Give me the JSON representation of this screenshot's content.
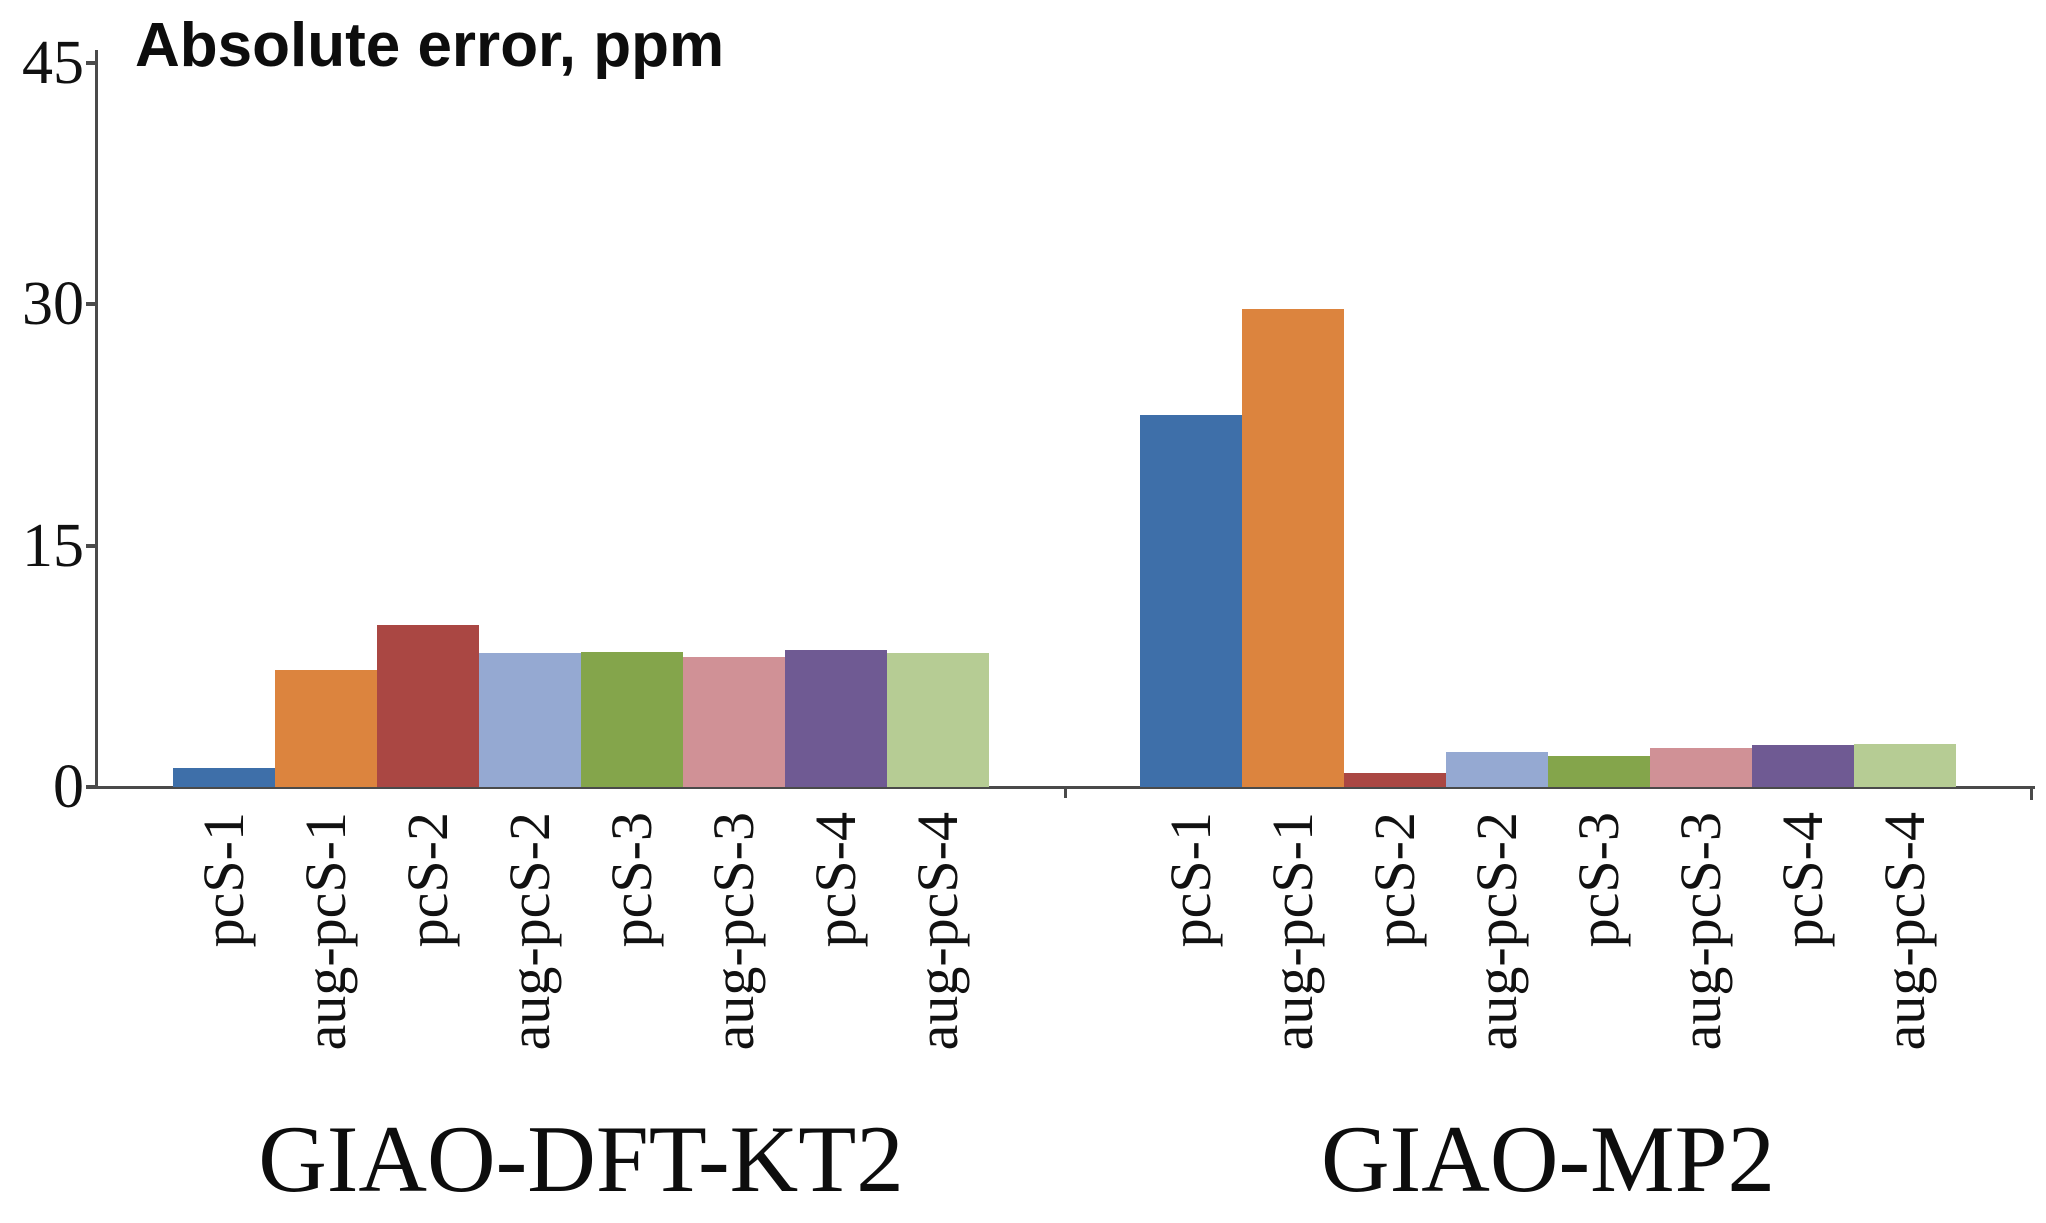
{
  "page": {
    "background": "#ffffff"
  },
  "chart_data": {
    "type": "bar",
    "title": "Absolute error, ppm",
    "categories": [
      "pcS-1",
      "aug-pcS-1",
      "pcS-2",
      "aug-pcS-2",
      "pcS-3",
      "aug-pcS-3",
      "pcS-4",
      "aug-pcS-4"
    ],
    "groups": [
      {
        "label": "GIAO-DFT-KT2",
        "values": [
          1.2,
          7.3,
          10.1,
          8.3,
          8.4,
          8.1,
          8.5,
          8.3
        ]
      },
      {
        "label": "GIAO-MP2",
        "values": [
          23.1,
          29.7,
          0.9,
          2.2,
          1.9,
          2.4,
          2.6,
          2.7
        ]
      }
    ],
    "bar_colors": [
      "#3E6FA9",
      "#DC843E",
      "#AA4743",
      "#95A9D2",
      "#84A54B",
      "#D09196",
      "#6F5A93",
      "#B6CC94"
    ],
    "yticks": [
      0,
      15,
      30,
      45
    ],
    "ylim": [
      0,
      45
    ],
    "grid": false,
    "legend": false,
    "axis_color": "#4a4a4a",
    "text_color": "#111111"
  }
}
